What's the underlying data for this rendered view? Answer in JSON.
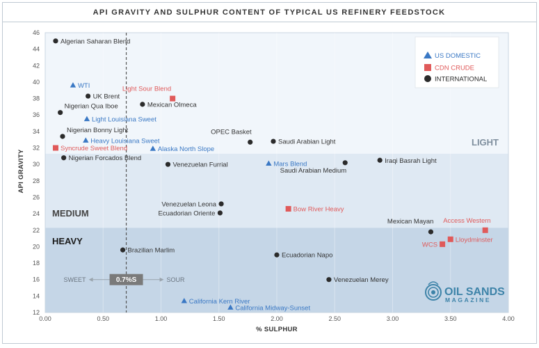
{
  "chart_data": {
    "type": "scatter",
    "title": "API GRAVITY AND SULPHUR CONTENT OF TYPICAL US REFINERY FEEDSTOCK",
    "xlabel": "% SULPHUR",
    "ylabel": "API GRAVITY",
    "xlim": [
      0,
      4
    ],
    "ylim": [
      12,
      46
    ],
    "x_ticks": [
      "0.00",
      "0.50",
      "1.00",
      "1.50",
      "2.00",
      "2.50",
      "3.00",
      "3.50",
      "4.00"
    ],
    "y_ticks": [
      "12",
      "14",
      "16",
      "18",
      "20",
      "22",
      "24",
      "26",
      "28",
      "30",
      "32",
      "34",
      "36",
      "38",
      "40",
      "42",
      "44",
      "46"
    ],
    "legend_position": "top-right",
    "series": [
      {
        "name": "US DOMESTIC",
        "marker": "triangle",
        "color": "#3a78c4",
        "points": [
          {
            "label": "WTI",
            "x": 0.24,
            "y": 39.6
          },
          {
            "label": "Light Louisiana Sweet",
            "x": 0.36,
            "y": 35.5
          },
          {
            "label": "Heavy Louisiana Sweet",
            "x": 0.35,
            "y": 32.9
          },
          {
            "label": "Alaska North Slope",
            "x": 0.93,
            "y": 31.9
          },
          {
            "label": "Mars Blend",
            "x": 1.93,
            "y": 30.1
          },
          {
            "label": "California Kern River",
            "x": 1.2,
            "y": 13.4
          },
          {
            "label": "California Midway-Sunset",
            "x": 1.6,
            "y": 12.6
          }
        ]
      },
      {
        "name": "CDN CRUDE",
        "marker": "square",
        "color": "#e05a5a",
        "points": [
          {
            "label": "Light Sour Blend",
            "x": 1.1,
            "y": 38.0
          },
          {
            "label": "Syncrude Sweet Blend",
            "x": 0.09,
            "y": 32.0
          },
          {
            "label": "Bow River Heavy",
            "x": 2.1,
            "y": 24.6
          },
          {
            "label": "Access Western",
            "x": 3.8,
            "y": 22.0
          },
          {
            "label": "Lloydminster",
            "x": 3.5,
            "y": 20.9
          },
          {
            "label": "WCS",
            "x": 3.43,
            "y": 20.3
          }
        ]
      },
      {
        "name": "INTERNATIONAL",
        "marker": "circle",
        "color": "#2b2b2b",
        "points": [
          {
            "label": "Algerian Saharan Blend",
            "x": 0.09,
            "y": 45.0
          },
          {
            "label": "UK Brent",
            "x": 0.37,
            "y": 38.3
          },
          {
            "label": "Mexican Olmeca",
            "x": 0.84,
            "y": 37.3
          },
          {
            "label": "Nigerian Qua Iboe",
            "x": 0.13,
            "y": 36.3
          },
          {
            "label": "Nigerian Bonny Light",
            "x": 0.15,
            "y": 33.4
          },
          {
            "label": "Nigerian Forcados Blend",
            "x": 0.16,
            "y": 30.8
          },
          {
            "label": "OPEC Basket",
            "x": 1.77,
            "y": 32.7
          },
          {
            "label": "Saudi Arabian Light",
            "x": 1.97,
            "y": 32.8
          },
          {
            "label": "Saudi Arabian Medium",
            "x": 2.59,
            "y": 30.2
          },
          {
            "label": "Iraqi Basrah Light",
            "x": 2.89,
            "y": 30.5
          },
          {
            "label": "Venezuelan Furrial",
            "x": 1.06,
            "y": 30.0
          },
          {
            "label": "Venezuelan Leona",
            "x": 1.52,
            "y": 25.2
          },
          {
            "label": "Ecuadorian Oriente",
            "x": 1.51,
            "y": 24.1
          },
          {
            "label": "Mexican Mayan",
            "x": 3.33,
            "y": 21.8
          },
          {
            "label": "Brazilian Marlim",
            "x": 0.67,
            "y": 19.6
          },
          {
            "label": "Ecuadorian Napo",
            "x": 2.0,
            "y": 19.0
          },
          {
            "label": "Venezuelan Merey",
            "x": 2.45,
            "y": 16.0
          }
        ]
      }
    ],
    "zones": [
      {
        "name": "LIGHT",
        "y_from": 31.3,
        "y_to": 46,
        "color": "#f1f6fb"
      },
      {
        "name": "MEDIUM",
        "y_from": 22.3,
        "y_to": 31.3,
        "color": "#dfe9f3"
      },
      {
        "name": "HEAVY",
        "y_from": 12,
        "y_to": 22.3,
        "color": "#c5d6e7"
      }
    ],
    "sweet_sour_threshold": {
      "x": 0.7,
      "label": "0.7%S",
      "left_label": "SWEET",
      "right_label": "SOUR"
    },
    "colors": {
      "us_domestic": "#3a78c4",
      "cdn_crude": "#e05a5a",
      "international": "#2b2b2b"
    }
  },
  "branding": {
    "line1": "OIL SANDS",
    "line2": "MAGAZINE",
    "color": "#3d83a8"
  }
}
